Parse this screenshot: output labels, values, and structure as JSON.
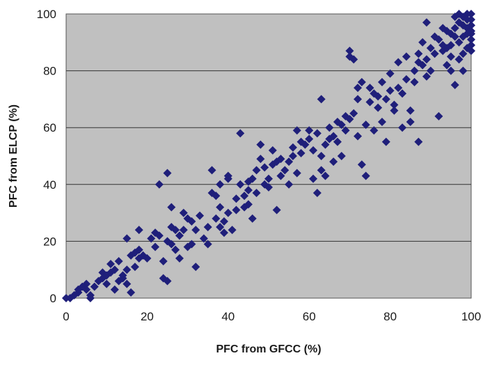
{
  "chart_data": {
    "type": "scatter",
    "xlabel": "PFC from GFCC (%)",
    "ylabel": "PFC from ELCP (%)",
    "xlim": [
      0,
      100
    ],
    "ylim": [
      0,
      100
    ],
    "xticks": [
      0,
      20,
      40,
      60,
      80,
      100
    ],
    "yticks": [
      0,
      20,
      40,
      60,
      80,
      100
    ],
    "x_tick_labels": [
      "0",
      "20",
      "40",
      "60",
      "80",
      "100"
    ],
    "y_tick_labels": [
      "0",
      "20",
      "40",
      "60",
      "80",
      "100"
    ],
    "grid": "horizontal",
    "marker": "diamond",
    "colors": {
      "marker": "#1f1f7a",
      "plot_bg": "#c0c0c0",
      "grid": "#333333"
    },
    "points": [
      [
        0,
        0
      ],
      [
        1,
        0
      ],
      [
        2,
        1
      ],
      [
        3,
        2
      ],
      [
        3,
        3
      ],
      [
        4,
        4
      ],
      [
        5,
        3
      ],
      [
        5,
        5
      ],
      [
        6,
        1
      ],
      [
        6,
        0
      ],
      [
        7,
        4
      ],
      [
        8,
        6
      ],
      [
        9,
        7
      ],
      [
        9,
        9
      ],
      [
        10,
        8
      ],
      [
        10,
        5
      ],
      [
        11,
        9
      ],
      [
        11,
        12
      ],
      [
        12,
        10
      ],
      [
        12,
        3
      ],
      [
        13,
        13
      ],
      [
        13,
        6
      ],
      [
        14,
        7
      ],
      [
        14,
        8
      ],
      [
        15,
        10
      ],
      [
        15,
        21
      ],
      [
        15,
        5
      ],
      [
        16,
        2
      ],
      [
        16,
        15
      ],
      [
        17,
        16
      ],
      [
        17,
        11
      ],
      [
        18,
        17
      ],
      [
        18,
        24
      ],
      [
        18,
        14
      ],
      [
        19,
        15
      ],
      [
        20,
        14
      ],
      [
        21,
        21
      ],
      [
        22,
        18
      ],
      [
        22,
        23
      ],
      [
        23,
        40
      ],
      [
        23,
        22
      ],
      [
        24,
        7
      ],
      [
        24,
        13
      ],
      [
        25,
        6
      ],
      [
        25,
        20
      ],
      [
        25,
        44
      ],
      [
        26,
        25
      ],
      [
        26,
        19
      ],
      [
        26,
        32
      ],
      [
        27,
        17
      ],
      [
        27,
        24
      ],
      [
        28,
        22
      ],
      [
        28,
        14
      ],
      [
        29,
        24
      ],
      [
        29,
        30
      ],
      [
        30,
        28
      ],
      [
        30,
        18
      ],
      [
        31,
        19
      ],
      [
        31,
        27
      ],
      [
        32,
        11
      ],
      [
        32,
        24
      ],
      [
        33,
        29
      ],
      [
        34,
        21
      ],
      [
        35,
        19
      ],
      [
        35,
        25
      ],
      [
        36,
        45
      ],
      [
        36,
        37
      ],
      [
        37,
        36
      ],
      [
        37,
        28
      ],
      [
        38,
        32
      ],
      [
        38,
        40
      ],
      [
        38,
        25
      ],
      [
        39,
        23
      ],
      [
        39,
        27
      ],
      [
        40,
        30
      ],
      [
        40,
        43
      ],
      [
        40,
        42
      ],
      [
        41,
        24
      ],
      [
        42,
        35
      ],
      [
        42,
        31
      ],
      [
        43,
        40
      ],
      [
        43,
        58
      ],
      [
        44,
        32
      ],
      [
        44,
        36
      ],
      [
        45,
        33
      ],
      [
        45,
        38
      ],
      [
        45,
        41
      ],
      [
        46,
        28
      ],
      [
        46,
        42
      ],
      [
        47,
        37
      ],
      [
        47,
        45
      ],
      [
        48,
        54
      ],
      [
        48,
        49
      ],
      [
        49,
        40
      ],
      [
        49,
        46
      ],
      [
        50,
        39
      ],
      [
        50,
        42
      ],
      [
        51,
        52
      ],
      [
        51,
        47
      ],
      [
        52,
        31
      ],
      [
        52,
        48
      ],
      [
        53,
        43
      ],
      [
        53,
        49
      ],
      [
        54,
        45
      ],
      [
        55,
        40
      ],
      [
        55,
        48
      ],
      [
        56,
        50
      ],
      [
        56,
        53
      ],
      [
        57,
        59
      ],
      [
        57,
        44
      ],
      [
        58,
        55
      ],
      [
        58,
        51
      ],
      [
        59,
        54
      ],
      [
        60,
        56
      ],
      [
        60,
        59
      ],
      [
        61,
        42
      ],
      [
        61,
        52
      ],
      [
        62,
        37
      ],
      [
        62,
        58
      ],
      [
        63,
        70
      ],
      [
        63,
        45
      ],
      [
        63,
        50
      ],
      [
        64,
        54
      ],
      [
        64,
        43
      ],
      [
        65,
        56
      ],
      [
        65,
        60
      ],
      [
        66,
        48
      ],
      [
        66,
        57
      ],
      [
        67,
        55
      ],
      [
        67,
        62
      ],
      [
        68,
        61
      ],
      [
        68,
        50
      ],
      [
        69,
        59
      ],
      [
        69,
        64
      ],
      [
        70,
        63
      ],
      [
        70,
        85
      ],
      [
        70,
        87
      ],
      [
        71,
        84
      ],
      [
        71,
        65
      ],
      [
        72,
        70
      ],
      [
        72,
        57
      ],
      [
        72,
        74
      ],
      [
        73,
        47
      ],
      [
        73,
        76
      ],
      [
        74,
        43
      ],
      [
        74,
        61
      ],
      [
        75,
        69
      ],
      [
        75,
        74
      ],
      [
        76,
        72
      ],
      [
        76,
        59
      ],
      [
        77,
        67
      ],
      [
        77,
        71
      ],
      [
        78,
        62
      ],
      [
        78,
        76
      ],
      [
        79,
        70
      ],
      [
        79,
        55
      ],
      [
        80,
        73
      ],
      [
        80,
        79
      ],
      [
        81,
        68
      ],
      [
        81,
        66
      ],
      [
        82,
        74
      ],
      [
        82,
        83
      ],
      [
        83,
        60
      ],
      [
        83,
        72
      ],
      [
        84,
        85
      ],
      [
        84,
        77
      ],
      [
        85,
        66
      ],
      [
        85,
        62
      ],
      [
        86,
        80
      ],
      [
        86,
        76
      ],
      [
        87,
        55
      ],
      [
        87,
        86
      ],
      [
        88,
        90
      ],
      [
        88,
        82
      ],
      [
        89,
        84
      ],
      [
        89,
        97
      ],
      [
        90,
        80
      ],
      [
        90,
        88
      ],
      [
        91,
        86
      ],
      [
        91,
        92
      ],
      [
        92,
        64
      ],
      [
        92,
        91
      ],
      [
        93,
        89
      ],
      [
        93,
        87
      ],
      [
        94,
        94
      ],
      [
        94,
        82
      ],
      [
        95,
        93
      ],
      [
        95,
        89
      ],
      [
        95,
        85
      ],
      [
        96,
        95
      ],
      [
        96,
        75
      ],
      [
        96,
        99
      ],
      [
        97,
        90
      ],
      [
        97,
        97
      ],
      [
        97,
        84
      ],
      [
        98,
        92
      ],
      [
        98,
        80
      ],
      [
        98,
        86
      ],
      [
        98,
        99
      ],
      [
        99,
        95
      ],
      [
        99,
        93
      ],
      [
        99,
        88
      ],
      [
        99,
        100
      ],
      [
        100,
        96
      ],
      [
        100,
        91
      ],
      [
        100,
        87
      ],
      [
        100,
        98
      ],
      [
        100,
        100
      ],
      [
        100,
        93
      ],
      [
        100,
        89
      ],
      [
        97,
        100
      ],
      [
        99,
        98
      ],
      [
        100,
        94
      ],
      [
        98,
        96
      ],
      [
        96,
        92
      ],
      [
        95,
        80
      ],
      [
        94,
        88
      ],
      [
        93,
        95
      ],
      [
        89,
        78
      ],
      [
        87,
        83
      ]
    ]
  }
}
